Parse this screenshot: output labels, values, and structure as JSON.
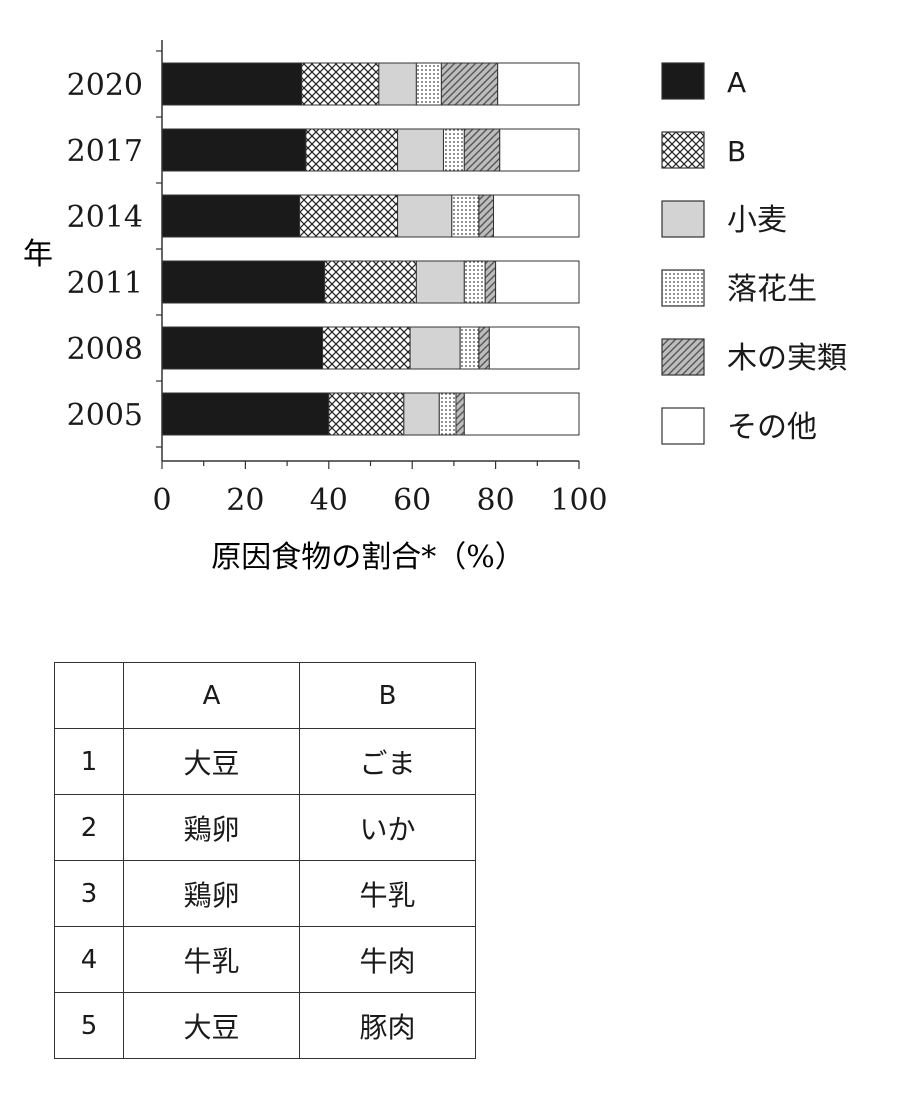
{
  "chart_data": {
    "type": "bar",
    "orientation": "horizontal",
    "stacked": true,
    "categories": [
      "2020",
      "2017",
      "2014",
      "2011",
      "2008",
      "2005"
    ],
    "series": [
      {
        "name": "A",
        "pattern": "solid-black",
        "values": [
          33.5,
          34.5,
          33.0,
          39.0,
          38.5,
          40.0
        ]
      },
      {
        "name": "B",
        "pattern": "crosshatch",
        "values": [
          18.5,
          22.0,
          23.5,
          22.0,
          21.0,
          18.0
        ]
      },
      {
        "name": "小麦",
        "pattern": "light-gray",
        "values": [
          9.0,
          11.0,
          13.0,
          11.5,
          12.0,
          8.5
        ]
      },
      {
        "name": "落花生",
        "pattern": "dots",
        "values": [
          6.0,
          5.0,
          6.5,
          5.0,
          4.5,
          4.0
        ]
      },
      {
        "name": "木の実類",
        "pattern": "diagonal",
        "values": [
          13.5,
          8.5,
          3.5,
          2.5,
          2.5,
          2.0
        ]
      },
      {
        "name": "その他",
        "pattern": "white",
        "values": [
          19.5,
          19.0,
          20.5,
          20.0,
          21.5,
          27.5
        ]
      }
    ],
    "xlabel": "原因食物の割合*（%）",
    "ylabel": "年",
    "xlim": [
      0,
      100
    ],
    "xticks": [
      "0",
      "20",
      "40",
      "60",
      "80",
      "100"
    ],
    "legend_position": "right",
    "colors": {
      "solid": "#1a1a1a",
      "gray": "#d3d3d3",
      "stroke": "#333333",
      "hatch": "#555555"
    }
  },
  "table": {
    "headers": [
      "",
      "A",
      "B"
    ],
    "rows": [
      [
        "1",
        "大豆",
        "ごま"
      ],
      [
        "2",
        "鶏卵",
        "いか"
      ],
      [
        "3",
        "鶏卵",
        "牛乳"
      ],
      [
        "4",
        "牛乳",
        "牛肉"
      ],
      [
        "5",
        "大豆",
        "豚肉"
      ]
    ]
  }
}
